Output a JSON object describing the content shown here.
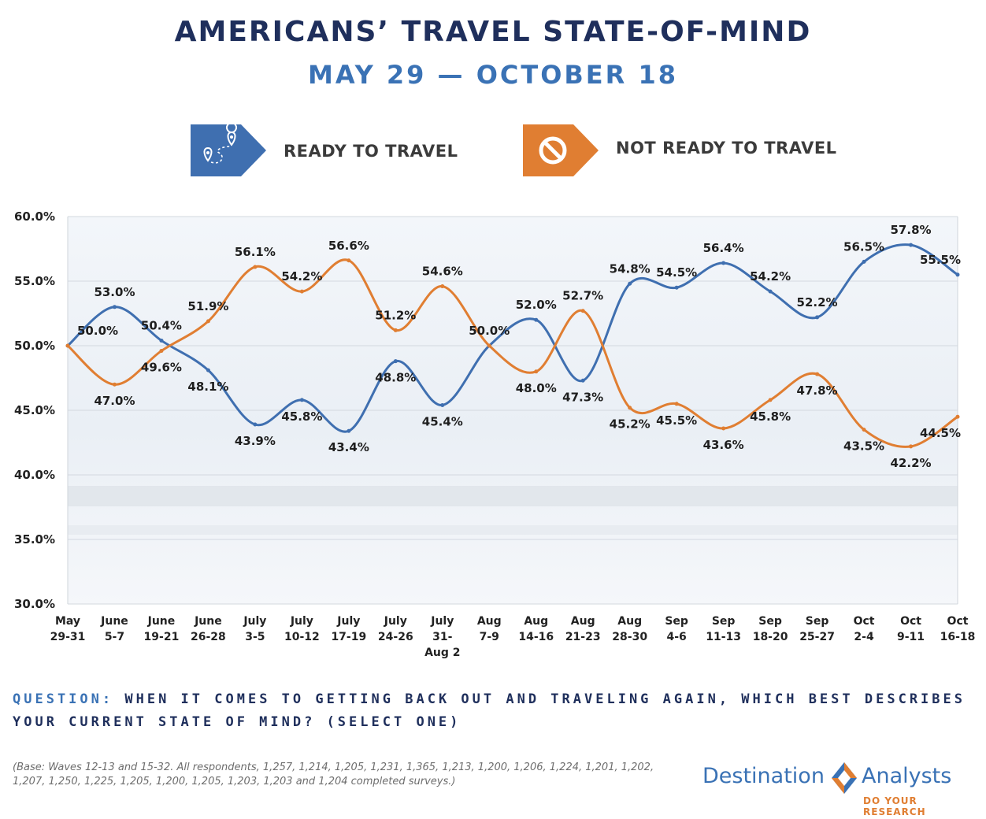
{
  "title": "AMERICANS’ TRAVEL STATE-OF-MIND",
  "subtitle": "MAY 29 — OCTOBER 18",
  "legend": {
    "ready": "READY TO TRAVEL",
    "not_ready": "NOT READY TO TRAVEL",
    "ready_icon": "map-route-icon",
    "not_ready_icon": "no-entry-icon"
  },
  "colors": {
    "ready": "#3f6fb0",
    "not_ready": "#e07e32",
    "title": "#1f2f5c",
    "subtitle": "#3a72b5"
  },
  "chart_data": {
    "type": "line",
    "ylim": [
      30,
      60
    ],
    "yticks": [
      "30.0%",
      "35.0%",
      "40.0%",
      "45.0%",
      "50.0%",
      "55.0%",
      "60.0%"
    ],
    "categories": [
      [
        "May",
        "29-31"
      ],
      [
        "June",
        "5-7"
      ],
      [
        "June",
        "19-21"
      ],
      [
        "June",
        "26-28"
      ],
      [
        "July",
        "3-5"
      ],
      [
        "July",
        "10-12"
      ],
      [
        "July",
        "17-19"
      ],
      [
        "July",
        "24-26"
      ],
      [
        "July",
        "31-",
        "Aug 2"
      ],
      [
        "Aug",
        "7-9"
      ],
      [
        "Aug",
        "14-16"
      ],
      [
        "Aug",
        "21-23"
      ],
      [
        "Aug",
        "28-30"
      ],
      [
        "Sep",
        "4-6"
      ],
      [
        "Sep",
        "11-13"
      ],
      [
        "Sep",
        "18-20"
      ],
      [
        "Sep",
        "25-27"
      ],
      [
        "Oct",
        "2-4"
      ],
      [
        "Oct",
        "9-11"
      ],
      [
        "Oct",
        "16-18"
      ]
    ],
    "grid": true,
    "series": [
      {
        "name": "READY TO TRAVEL",
        "values": [
          50.0,
          53.0,
          50.4,
          48.1,
          43.9,
          45.8,
          43.4,
          48.8,
          45.4,
          50.0,
          52.0,
          47.3,
          54.8,
          54.5,
          56.4,
          54.2,
          52.2,
          56.5,
          57.8,
          55.5
        ],
        "labels": [
          "",
          "53.0%",
          "50.4%",
          "48.1%",
          "43.9%",
          "45.8%",
          "43.4%",
          "48.8%",
          "45.4%",
          "50.0%",
          "52.0%",
          "47.3%",
          "54.8%",
          "54.5%",
          "56.4%",
          "54.2%",
          "52.2%",
          "56.5%",
          "57.8%",
          "55.5%"
        ]
      },
      {
        "name": "NOT READY TO TRAVEL",
        "values": [
          50.0,
          47.0,
          49.6,
          51.9,
          56.1,
          54.2,
          56.6,
          51.2,
          54.6,
          50.0,
          48.0,
          52.7,
          45.2,
          45.5,
          43.6,
          45.8,
          47.8,
          43.5,
          42.2,
          44.5
        ],
        "labels": [
          "50.0%",
          "47.0%",
          "49.6%",
          "51.9%",
          "56.1%",
          "54.2%",
          "56.6%",
          "51.2%",
          "54.6%",
          "",
          "48.0%",
          "52.7%",
          "45.2%",
          "45.5%",
          "43.6%",
          "45.8%",
          "47.8%",
          "43.5%",
          "42.2%",
          "44.5%"
        ]
      }
    ]
  },
  "question": {
    "label": "QUESTION:",
    "text": "WHEN IT COMES TO GETTING BACK OUT AND TRAVELING AGAIN, WHICH BEST DESCRIBES YOUR CURRENT STATE OF MIND? (SELECT ONE)"
  },
  "base_note": "(Base: Waves 12-13 and 15-32. All respondents, 1,257, 1,214, 1,205, 1,231, 1,365, 1,213, 1,200, 1,206, 1,224, 1,201, 1,202, 1,207, 1,250, 1,225, 1,205, 1,200, 1,205, 1,203, 1,203 and 1,204 completed surveys.)",
  "logo": {
    "word1": "Destination",
    "word2": "Analysts",
    "tagline": "DO YOUR RESEARCH"
  }
}
